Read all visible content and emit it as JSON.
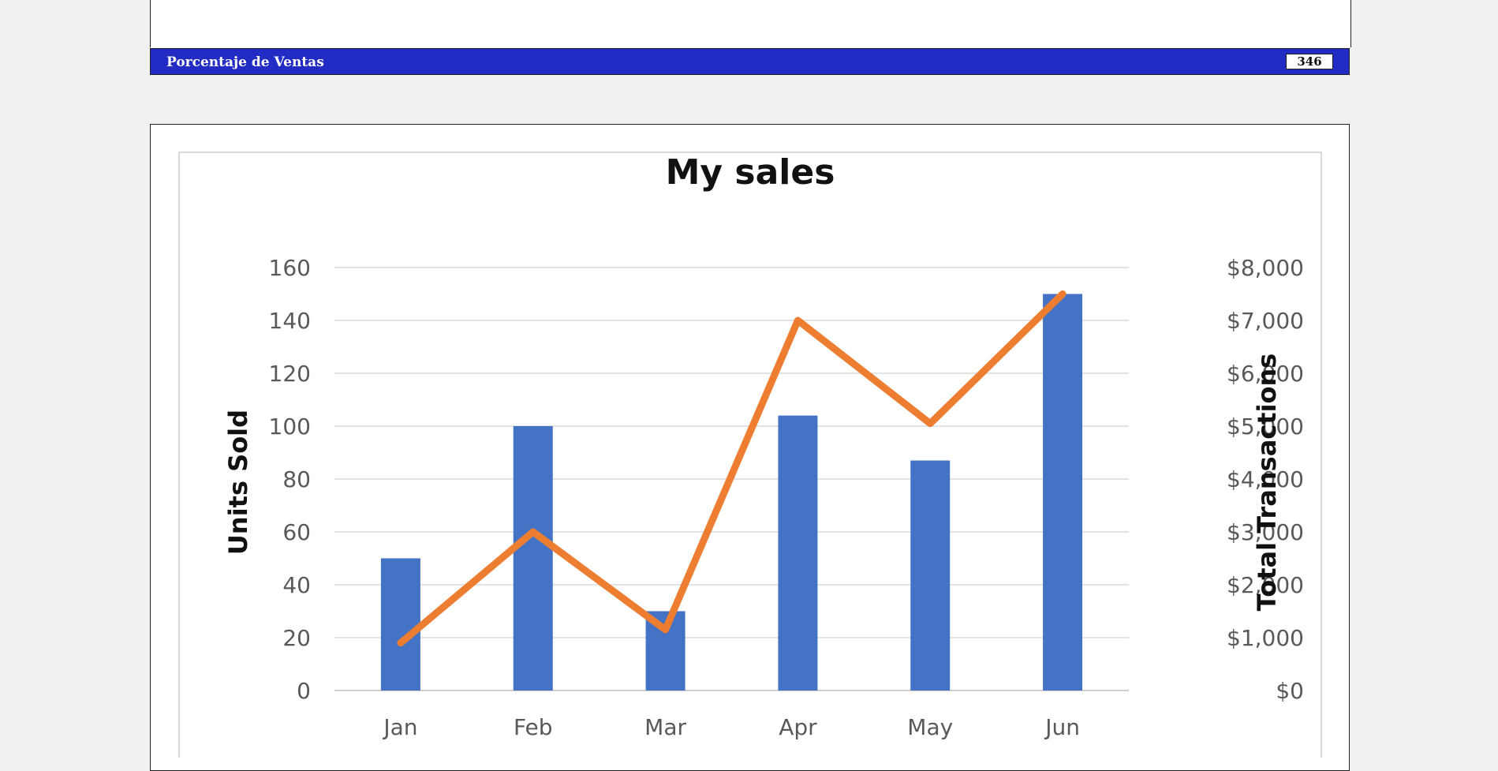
{
  "header": {
    "section_title": "Porcentaje de Ventas",
    "page_number": "346",
    "bar_color": "#222bc4"
  },
  "chart_data": {
    "type": "bar",
    "title": "My sales",
    "categories": [
      "Jan",
      "Feb",
      "Mar",
      "Apr",
      "May",
      "Jun"
    ],
    "series": [
      {
        "name": "Units Sold",
        "type": "bar",
        "axis": "left",
        "color": "#4472c4",
        "values": [
          50,
          100,
          30,
          104,
          87,
          150
        ]
      },
      {
        "name": "Total Transactions",
        "type": "line",
        "axis": "right",
        "color": "#ed7d31",
        "values": [
          900,
          3000,
          1150,
          7000,
          5050,
          7500
        ]
      }
    ],
    "ylabel": "Units Sold",
    "ylabel_right": "Total Transactions",
    "ylim": [
      0,
      160
    ],
    "ylim_right": [
      0,
      8000
    ],
    "yticks": [
      "0",
      "20",
      "40",
      "60",
      "80",
      "100",
      "120",
      "140",
      "160"
    ],
    "yticks_right": [
      "$0",
      "$1,000",
      "$2,000",
      "$3,000",
      "$4,000",
      "$5,000",
      "$6,000",
      "$7,000",
      "$8,000"
    ],
    "grid": true
  }
}
